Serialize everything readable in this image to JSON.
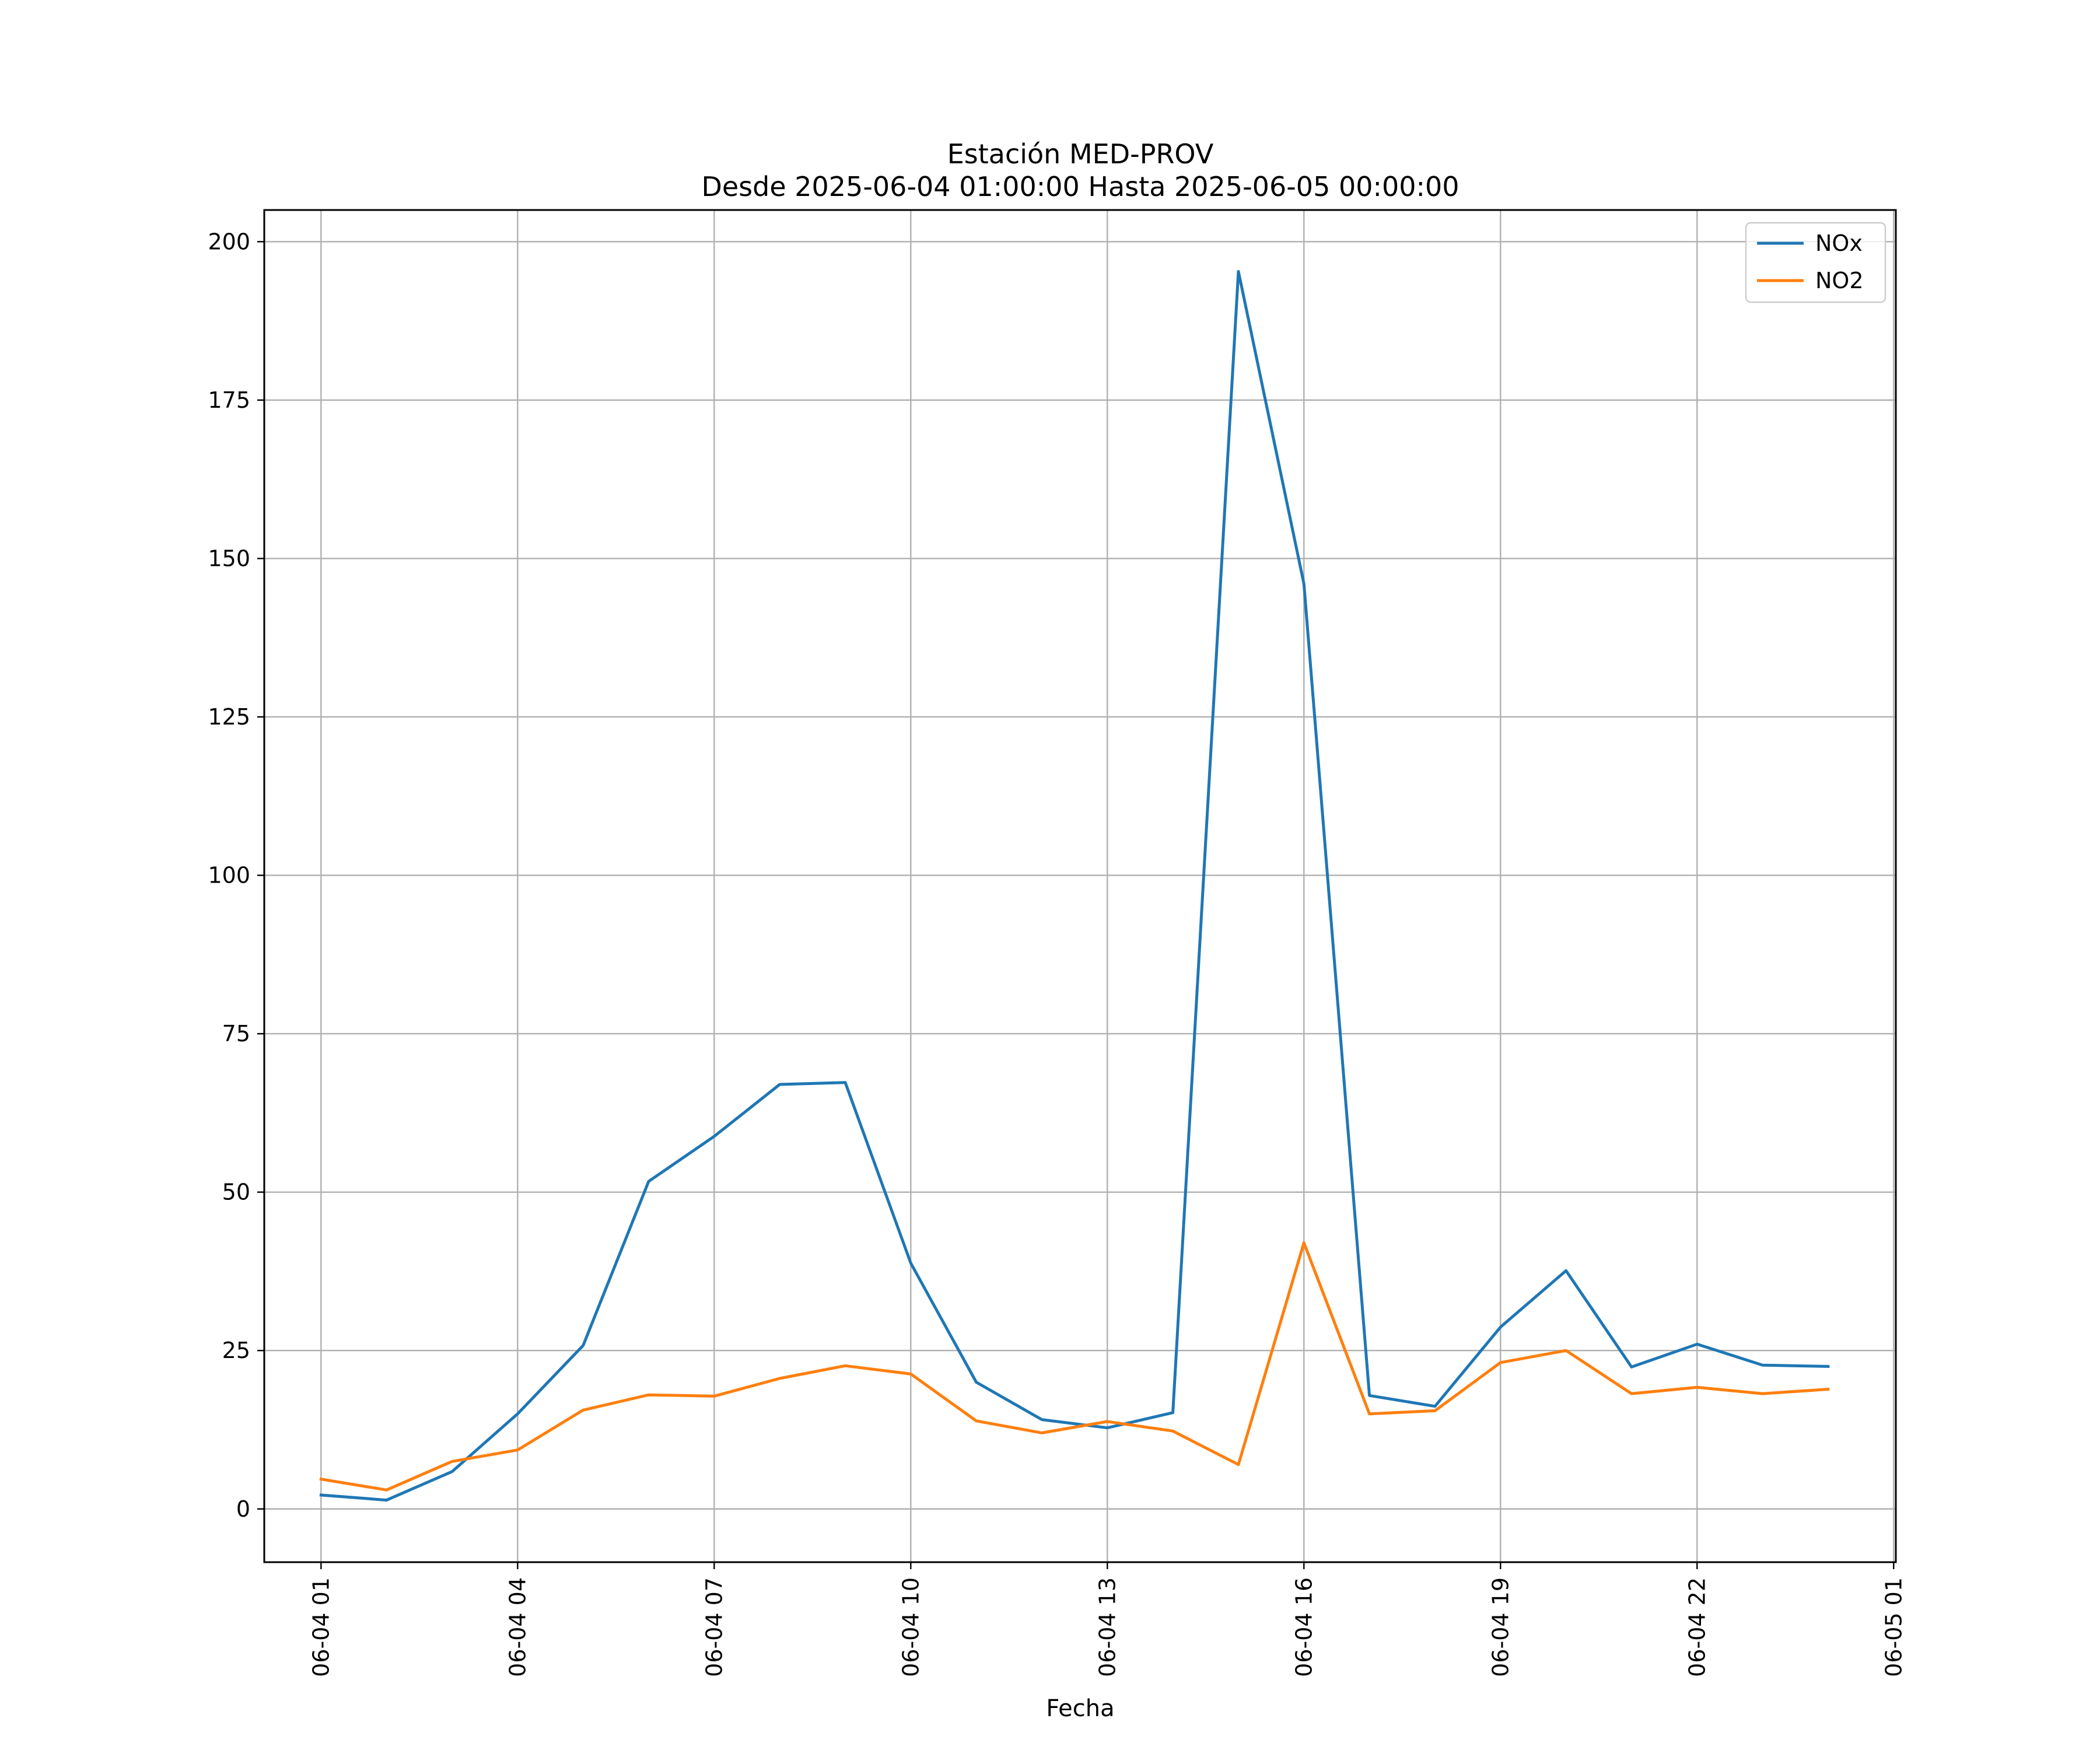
{
  "chart_data": {
    "type": "line",
    "title": "Estación MED-PROV",
    "subtitle": "Desde 2025-06-04 01:00:00 Hasta 2025-06-05 00:00:00",
    "xlabel": "Fecha",
    "ylabel": "",
    "x": [
      "2025-06-04 01:00",
      "2025-06-04 02:00",
      "2025-06-04 03:00",
      "2025-06-04 04:00",
      "2025-06-04 05:00",
      "2025-06-04 06:00",
      "2025-06-04 07:00",
      "2025-06-04 08:00",
      "2025-06-04 09:00",
      "2025-06-04 10:00",
      "2025-06-04 11:00",
      "2025-06-04 12:00",
      "2025-06-04 13:00",
      "2025-06-04 14:00",
      "2025-06-04 15:00",
      "2025-06-04 16:00",
      "2025-06-04 17:00",
      "2025-06-04 18:00",
      "2025-06-04 19:00",
      "2025-06-04 20:00",
      "2025-06-04 21:00",
      "2025-06-04 22:00",
      "2025-06-04 23:00",
      "2025-06-05 00:00"
    ],
    "series": [
      {
        "name": "NOx",
        "color": "#1f77b4",
        "values": [
          2.2,
          1.4,
          5.9,
          15.0,
          25.8,
          51.7,
          58.8,
          67.0,
          67.3,
          38.8,
          20.0,
          14.1,
          12.8,
          15.2,
          195.3,
          146.0,
          17.9,
          16.2,
          28.7,
          37.6,
          22.4,
          26.0,
          22.7,
          22.5
        ]
      },
      {
        "name": "NO2",
        "color": "#ff7f0e",
        "values": [
          4.7,
          3.0,
          7.5,
          9.3,
          15.6,
          18.0,
          17.8,
          20.6,
          22.6,
          21.3,
          13.9,
          12.0,
          13.8,
          12.3,
          7.0,
          42.0,
          15.0,
          15.5,
          23.1,
          25.0,
          18.2,
          19.2,
          18.2,
          18.9
        ]
      }
    ],
    "xticks": [
      "2025-06-04 01:00",
      "2025-06-04 04:00",
      "2025-06-04 07:00",
      "2025-06-04 10:00",
      "2025-06-04 13:00",
      "2025-06-04 16:00",
      "2025-06-04 19:00",
      "2025-06-04 22:00",
      "2025-06-05 01:00"
    ],
    "xticklabels": [
      "06-04 01",
      "06-04 04",
      "06-04 07",
      "06-04 10",
      "06-04 13",
      "06-04 16",
      "06-04 19",
      "06-04 22",
      "06-05 01"
    ],
    "xlim": [
      "2025-06-04 00:08",
      "2025-06-05 01:02"
    ],
    "yticks": [
      0,
      25,
      50,
      75,
      100,
      125,
      150,
      175,
      200
    ],
    "ylim": [
      -8.4,
      205.0
    ],
    "grid": true,
    "legend": "upper right"
  }
}
